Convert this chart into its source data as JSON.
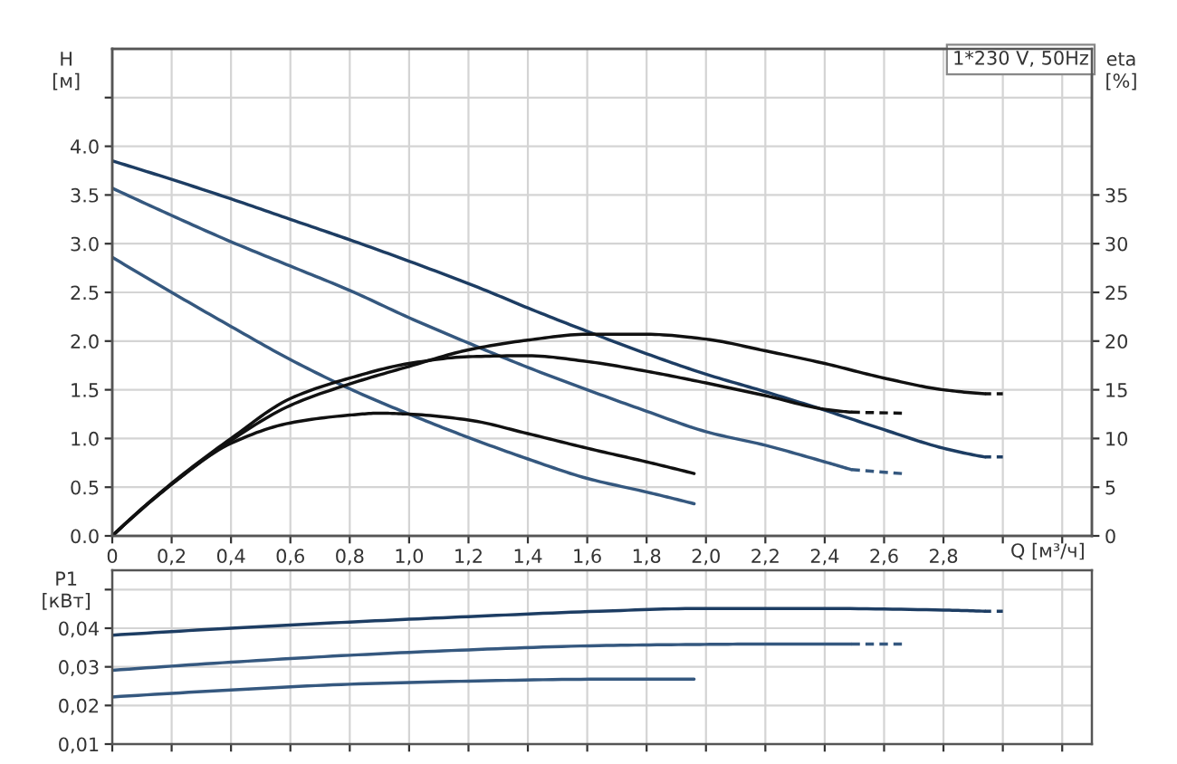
{
  "chart_data": [
    {
      "type": "line",
      "title": "1*230 V, 50Hz",
      "xlabel": "Q [м³/ч]",
      "ylabel": "H\n[м]",
      "y2label": "eta\n[%]",
      "xlim": [
        0,
        3.3
      ],
      "xticks": [
        0,
        {
          "value": 0.2,
          "label": "0,2"
        },
        {
          "value": 0.4,
          "label": "0,4"
        },
        {
          "value": 0.6,
          "label": "0,6"
        },
        {
          "value": 0.8,
          "label": "0,8"
        },
        {
          "value": 1.0,
          "label": "1,0"
        },
        {
          "value": 1.2,
          "label": "1,2"
        },
        {
          "value": 1.4,
          "label": "1,4"
        },
        {
          "value": 1.6,
          "label": "1,6"
        },
        {
          "value": 1.8,
          "label": "1,8"
        },
        {
          "value": 2.0,
          "label": "2,0"
        },
        {
          "value": 2.2,
          "label": "2,2"
        },
        {
          "value": 2.4,
          "label": "2,4"
        },
        {
          "value": 2.6,
          "label": "2,6"
        },
        {
          "value": 2.8,
          "label": "2,8"
        },
        {
          "value": 3.0,
          "label": null
        },
        {
          "value": 3.2,
          "label": null
        }
      ],
      "ylim": [
        0,
        5
      ],
      "yticks": [
        {
          "value": 0,
          "label": "0.0"
        },
        0.5,
        {
          "value": 1,
          "label": "1.0"
        },
        1.5,
        {
          "value": 2,
          "label": "2.0"
        },
        2.5,
        {
          "value": 3,
          "label": "3.0"
        },
        3.5,
        {
          "value": 4,
          "label": "4.0"
        },
        {
          "value": 4.5,
          "label": null
        }
      ],
      "y2lim": [
        0,
        50
      ],
      "y2ticks": [
        0,
        5,
        10,
        15,
        20,
        25,
        30,
        35
      ],
      "grid": true,
      "series": [
        {
          "color": "#1d3d63",
          "x": [
            0,
            0.2,
            0.4,
            0.6,
            0.8,
            1.0,
            1.25,
            1.4,
            1.6,
            1.8,
            2.0,
            2.2,
            2.4,
            2.6,
            2.8,
            2.94
          ],
          "values": [
            3.85,
            3.66,
            3.46,
            3.25,
            3.04,
            2.82,
            2.53,
            2.34,
            2.1,
            1.87,
            1.66,
            1.48,
            1.29,
            1.09,
            0.9,
            0.81
          ]
        },
        {
          "color": "#1d3d63",
          "line_style": "dashed",
          "x": [
            2.94,
            3.0
          ],
          "values": [
            0.81,
            0.81
          ]
        },
        {
          "color": "#35587f",
          "x": [
            0,
            0.2,
            0.4,
            0.6,
            0.8,
            1.0,
            1.2,
            1.4,
            1.6,
            1.8,
            2.0,
            2.2,
            2.4,
            2.49
          ],
          "values": [
            3.57,
            3.29,
            3.02,
            2.77,
            2.52,
            2.24,
            1.98,
            1.73,
            1.5,
            1.28,
            1.07,
            0.93,
            0.76,
            0.68
          ]
        },
        {
          "color": "#35587f",
          "line_style": "dashed",
          "x": [
            2.49,
            2.66
          ],
          "values": [
            0.68,
            0.64
          ]
        },
        {
          "color": "#35587f",
          "x": [
            0,
            0.2,
            0.4,
            0.6,
            0.8,
            1.0,
            1.2,
            1.4,
            1.6,
            1.8,
            1.96
          ],
          "values": [
            2.86,
            2.5,
            2.15,
            1.81,
            1.51,
            1.25,
            1.01,
            0.79,
            0.59,
            0.45,
            0.33
          ]
        },
        {
          "color": "#111111",
          "axis": "y2",
          "x": [
            0,
            0.2,
            0.4,
            0.6,
            0.8,
            1.0,
            1.2,
            1.4,
            1.6,
            1.8,
            2.0,
            2.2,
            2.4,
            2.6,
            2.8,
            2.94
          ],
          "values": [
            0,
            5.3,
            9.8,
            13.4,
            15.6,
            17.4,
            19.1,
            20.1,
            20.7,
            20.7,
            20.2,
            19.0,
            17.7,
            16.2,
            15.0,
            14.6
          ]
        },
        {
          "color": "#111111",
          "axis": "y2",
          "line_style": "dashed",
          "x": [
            2.94,
            3.0
          ],
          "values": [
            14.6,
            14.6
          ]
        },
        {
          "color": "#111111",
          "axis": "y2",
          "x": [
            0,
            0.2,
            0.4,
            0.6,
            0.8,
            1.0,
            1.2,
            1.4,
            1.6,
            1.8,
            2.0,
            2.2,
            2.4,
            2.49
          ],
          "values": [
            0,
            5.4,
            10.0,
            14.1,
            16.2,
            17.7,
            18.4,
            18.5,
            17.9,
            16.9,
            15.7,
            14.4,
            13.0,
            12.7
          ]
        },
        {
          "color": "#111111",
          "axis": "y2",
          "line_style": "dashed",
          "x": [
            2.49,
            2.66
          ],
          "values": [
            12.7,
            12.6
          ]
        },
        {
          "color": "#111111",
          "axis": "y2",
          "x": [
            0,
            0.2,
            0.4,
            0.6,
            0.8,
            0.9,
            1.0,
            1.2,
            1.4,
            1.6,
            1.8,
            1.96
          ],
          "values": [
            0,
            5.3,
            9.5,
            11.6,
            12.4,
            12.6,
            12.5,
            11.9,
            10.5,
            9.0,
            7.6,
            6.4
          ]
        }
      ]
    },
    {
      "type": "line",
      "ylabel": "P1\n[кВт]",
      "xlim": [
        0,
        3.3
      ],
      "xticks": [
        0,
        0.2,
        0.4,
        0.6,
        0.8,
        1.0,
        1.2,
        1.4,
        1.6,
        1.8,
        2.0,
        2.2,
        2.4,
        2.6,
        2.8,
        3.0,
        3.2
      ],
      "ylim": [
        0.01,
        0.055
      ],
      "yticks": [
        {
          "value": 0.01,
          "label": "0,01"
        },
        {
          "value": 0.02,
          "label": "0,02"
        },
        {
          "value": 0.03,
          "label": "0,03"
        },
        {
          "value": 0.04,
          "label": "0,04"
        },
        {
          "value": 0.05,
          "label": null
        }
      ],
      "tick_labels": "y",
      "grid": true,
      "series": [
        {
          "color": "#1d3d63",
          "x": [
            0,
            0.4,
            0.8,
            1.2,
            1.64,
            1.98,
            2.4,
            2.8,
            2.94
          ],
          "values": [
            0.0382,
            0.04,
            0.0416,
            0.043,
            0.0444,
            0.0451,
            0.0451,
            0.0447,
            0.0444
          ]
        },
        {
          "color": "#1d3d63",
          "line_style": "dashed",
          "x": [
            2.94,
            3.0
          ],
          "values": [
            0.0444,
            0.0444
          ]
        },
        {
          "color": "#35587f",
          "x": [
            0,
            0.4,
            0.8,
            1.2,
            1.64,
            1.98,
            2.2,
            2.49
          ],
          "values": [
            0.0291,
            0.0312,
            0.033,
            0.0344,
            0.0355,
            0.0358,
            0.0359,
            0.0359
          ]
        },
        {
          "color": "#35587f",
          "line_style": "dashed",
          "x": [
            2.49,
            2.66
          ],
          "values": [
            0.0359,
            0.0359
          ]
        },
        {
          "color": "#35587f",
          "x": [
            0,
            0.4,
            0.8,
            1.2,
            1.64,
            1.96
          ],
          "values": [
            0.0222,
            0.024,
            0.0255,
            0.0263,
            0.0268,
            0.0268
          ]
        }
      ]
    }
  ]
}
